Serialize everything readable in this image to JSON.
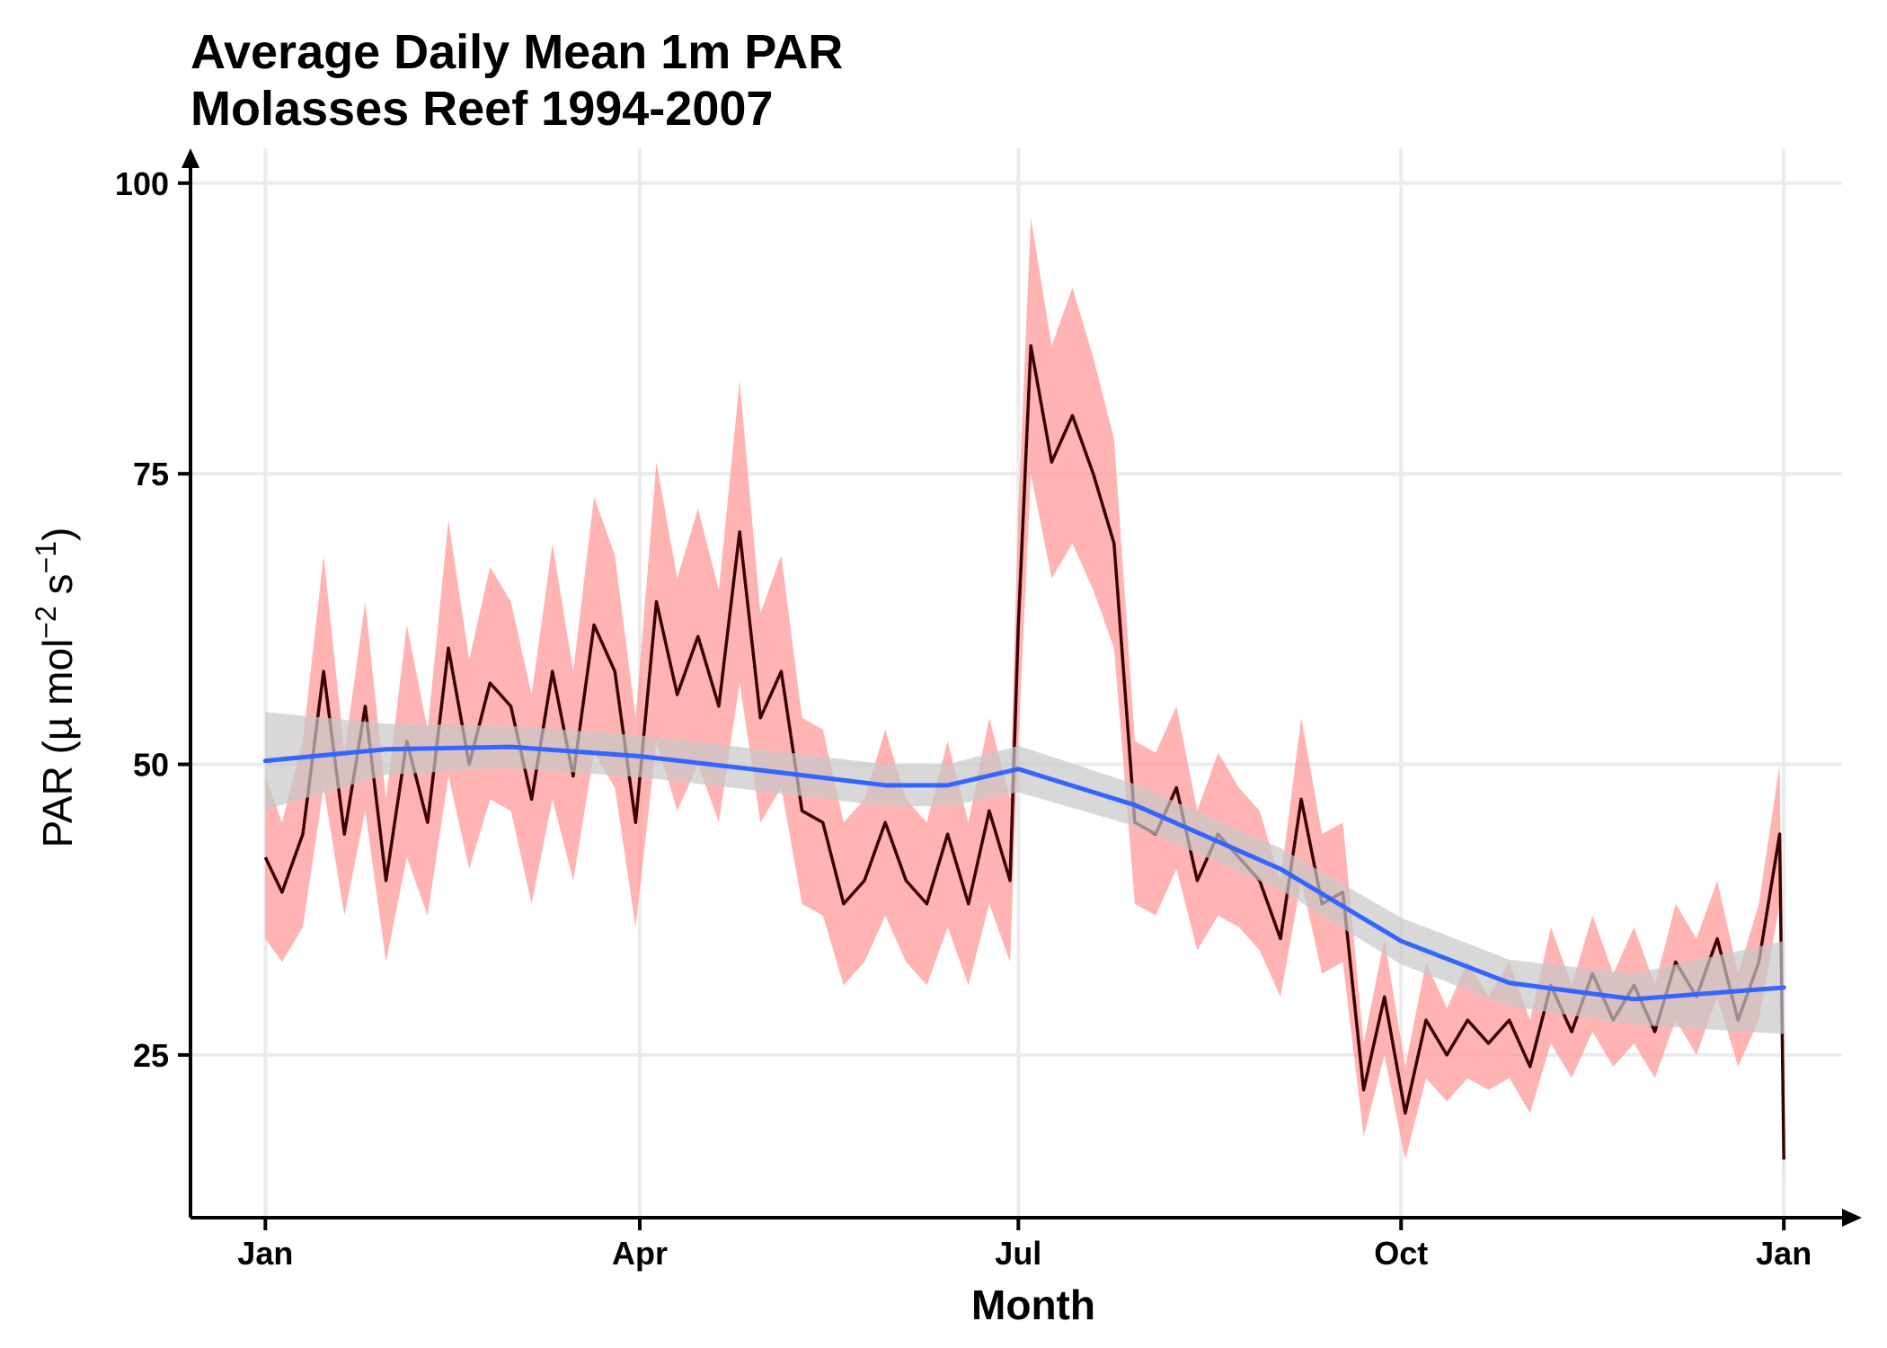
{
  "chart_data": {
    "type": "line",
    "title_line1": "Average Daily Mean 1m PAR",
    "title_line2": "Molasses Reef 1994-2007",
    "xlabel": "Month",
    "ylabel": "PAR (µ mol",
    "ylabel_sup1": "−2",
    "ylabel_mid": " s",
    "ylabel_sup2": "−1",
    "ylabel_end": ")",
    "x_unit": "day of year",
    "xlim": [
      -17,
      380
    ],
    "ylim": [
      11,
      103
    ],
    "x_ticks": [
      {
        "day": 1,
        "label": "Jan"
      },
      {
        "day": 91,
        "label": "Apr"
      },
      {
        "day": 182,
        "label": "Jul"
      },
      {
        "day": 274,
        "label": "Oct"
      },
      {
        "day": 366,
        "label": "Jan"
      }
    ],
    "y_ticks": [
      25,
      50,
      75,
      100
    ],
    "grid": true,
    "legend": "none",
    "series": [
      {
        "role": "daily_mean",
        "color": "#3a0000",
        "band_color": "#ff9999",
        "x": [
          1,
          5,
          10,
          15,
          20,
          25,
          30,
          35,
          40,
          45,
          50,
          55,
          60,
          65,
          70,
          75,
          80,
          85,
          90,
          95,
          100,
          105,
          110,
          115,
          120,
          125,
          130,
          135,
          140,
          145,
          150,
          155,
          160,
          165,
          170,
          175,
          180,
          182,
          185,
          190,
          195,
          200,
          205,
          210,
          215,
          220,
          225,
          230,
          235,
          240,
          245,
          250,
          255,
          260,
          265,
          270,
          275,
          280,
          285,
          290,
          295,
          300,
          305,
          310,
          315,
          320,
          325,
          330,
          335,
          340,
          345,
          350,
          355,
          360,
          365,
          366
        ],
        "y": [
          42,
          39,
          44,
          58,
          44,
          55,
          40,
          52,
          45,
          60,
          50,
          57,
          55,
          47,
          58,
          49,
          62,
          58,
          45,
          64,
          56,
          61,
          55,
          70,
          54,
          58,
          46,
          45,
          38,
          40,
          45,
          40,
          38,
          44,
          38,
          46,
          40,
          62,
          86,
          76,
          80,
          75,
          69,
          45,
          44,
          48,
          40,
          44,
          42,
          40,
          35,
          47,
          38,
          39,
          22,
          30,
          20,
          28,
          25,
          28,
          26,
          28,
          24,
          31,
          27,
          32,
          28,
          31,
          27,
          33,
          30,
          35,
          28,
          33,
          44,
          16
        ],
        "band_half_width": [
          7,
          6,
          8,
          10,
          7,
          9,
          7,
          10,
          8,
          11,
          9,
          10,
          9,
          9,
          11,
          9,
          11,
          10,
          9,
          12,
          10,
          11,
          10,
          13,
          9,
          10,
          8,
          8,
          7,
          7,
          8,
          7,
          7,
          8,
          7,
          8,
          7,
          10,
          11,
          10,
          11,
          10,
          9,
          7,
          7,
          7,
          6,
          7,
          6,
          6,
          5,
          7,
          6,
          6,
          4,
          5,
          4,
          5,
          4,
          5,
          4,
          5,
          4,
          5,
          4,
          5,
          4,
          5,
          4,
          5,
          5,
          5,
          4,
          5,
          6,
          3
        ]
      },
      {
        "role": "smooth_fit",
        "color": "#3366ff",
        "band_color": "#c8c8c8",
        "x": [
          1,
          30,
          60,
          91,
          120,
          150,
          165,
          182,
          210,
          245,
          274,
          300,
          330,
          366
        ],
        "y": [
          50.3,
          51.3,
          51.5,
          50.7,
          49.5,
          48.2,
          48.2,
          49.6,
          46.5,
          41.0,
          34.8,
          31.2,
          29.8,
          30.8
        ],
        "band_half_width": [
          4.2,
          2.2,
          1.8,
          1.8,
          1.8,
          1.8,
          1.8,
          2.0,
          1.8,
          1.8,
          2.0,
          2.0,
          2.2,
          4.0
        ]
      }
    ]
  }
}
